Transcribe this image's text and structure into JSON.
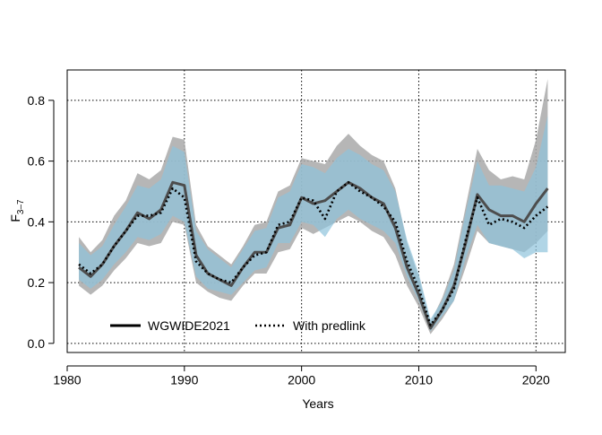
{
  "chart_data": {
    "type": "line",
    "title": "",
    "xlabel": "Years",
    "ylabel": "F",
    "ylabel_subscript": "3–7",
    "xlim": [
      1980,
      2022.5
    ],
    "ylim": [
      -0.03,
      0.9
    ],
    "x_ticks": [
      1980,
      1990,
      2000,
      2010,
      2020
    ],
    "y_ticks": [
      0.0,
      0.2,
      0.4,
      0.6,
      0.8
    ],
    "x_tick_labels": [
      "1980",
      "1990",
      "2000",
      "2010",
      "2020"
    ],
    "y_tick_labels": [
      "0.0",
      "0.2",
      "0.4",
      "0.6",
      "0.8"
    ],
    "grid": true,
    "legend_position": "bottom-left",
    "colors": {
      "wgwide_band": "#a9a9a9",
      "predlink_band": "#8ec3dc",
      "wgwide_line": "#4d4d4d",
      "predlink_line": "#000000"
    },
    "x": [
      1981,
      1982,
      1983,
      1984,
      1985,
      1986,
      1987,
      1988,
      1989,
      1990,
      1991,
      1992,
      1993,
      1994,
      1995,
      1996,
      1997,
      1998,
      1999,
      2000,
      2001,
      2002,
      2003,
      2004,
      2005,
      2006,
      2007,
      2008,
      2009,
      2010,
      2011,
      2012,
      2013,
      2014,
      2015,
      2016,
      2017,
      2018,
      2019,
      2020,
      2021
    ],
    "series": [
      {
        "name": "WGWIDE2021",
        "style": "solid",
        "values": [
          0.25,
          0.22,
          0.26,
          0.32,
          0.37,
          0.43,
          0.41,
          0.44,
          0.53,
          0.52,
          0.29,
          0.23,
          0.21,
          0.19,
          0.25,
          0.3,
          0.3,
          0.38,
          0.39,
          0.48,
          0.46,
          0.47,
          0.5,
          0.53,
          0.51,
          0.48,
          0.46,
          0.38,
          0.25,
          0.16,
          0.05,
          0.11,
          0.19,
          0.33,
          0.49,
          0.44,
          0.42,
          0.42,
          0.4,
          0.46,
          0.51
        ],
        "lower": [
          0.19,
          0.16,
          0.19,
          0.24,
          0.28,
          0.33,
          0.32,
          0.33,
          0.4,
          0.39,
          0.2,
          0.17,
          0.15,
          0.14,
          0.19,
          0.23,
          0.23,
          0.3,
          0.31,
          0.38,
          0.36,
          0.38,
          0.4,
          0.42,
          0.4,
          0.37,
          0.35,
          0.29,
          0.19,
          0.12,
          0.03,
          0.08,
          0.14,
          0.25,
          0.37,
          0.33,
          0.32,
          0.31,
          0.3,
          0.33,
          0.37
        ],
        "upper": [
          0.35,
          0.3,
          0.34,
          0.42,
          0.47,
          0.56,
          0.54,
          0.57,
          0.68,
          0.67,
          0.39,
          0.32,
          0.29,
          0.26,
          0.32,
          0.39,
          0.4,
          0.5,
          0.52,
          0.61,
          0.6,
          0.59,
          0.65,
          0.69,
          0.65,
          0.62,
          0.6,
          0.51,
          0.33,
          0.22,
          0.07,
          0.15,
          0.26,
          0.45,
          0.64,
          0.57,
          0.54,
          0.55,
          0.54,
          0.67,
          0.87
        ]
      },
      {
        "name": "With predlink",
        "style": "dotted",
        "values": [
          0.26,
          0.23,
          0.26,
          0.32,
          0.37,
          0.42,
          0.42,
          0.43,
          0.51,
          0.48,
          0.27,
          0.23,
          0.21,
          0.2,
          0.25,
          0.29,
          0.3,
          0.39,
          0.4,
          0.48,
          0.47,
          0.41,
          0.5,
          0.53,
          0.5,
          0.48,
          0.45,
          0.4,
          0.27,
          0.18,
          0.06,
          0.11,
          0.18,
          0.34,
          0.48,
          0.39,
          0.41,
          0.4,
          0.38,
          0.42,
          0.45
        ],
        "lower": [
          0.21,
          0.18,
          0.21,
          0.26,
          0.3,
          0.35,
          0.34,
          0.36,
          0.42,
          0.4,
          0.22,
          0.18,
          0.17,
          0.16,
          0.2,
          0.24,
          0.25,
          0.33,
          0.33,
          0.4,
          0.39,
          0.35,
          0.41,
          0.44,
          0.41,
          0.39,
          0.37,
          0.33,
          0.22,
          0.14,
          0.04,
          0.09,
          0.14,
          0.28,
          0.39,
          0.33,
          0.32,
          0.31,
          0.28,
          0.3,
          0.3
        ],
        "upper": [
          0.33,
          0.29,
          0.32,
          0.39,
          0.45,
          0.52,
          0.51,
          0.54,
          0.65,
          0.63,
          0.37,
          0.31,
          0.28,
          0.25,
          0.31,
          0.37,
          0.38,
          0.48,
          0.5,
          0.59,
          0.58,
          0.56,
          0.61,
          0.64,
          0.62,
          0.59,
          0.57,
          0.5,
          0.34,
          0.23,
          0.08,
          0.14,
          0.24,
          0.43,
          0.6,
          0.52,
          0.52,
          0.51,
          0.5,
          0.58,
          0.75
        ]
      }
    ]
  }
}
